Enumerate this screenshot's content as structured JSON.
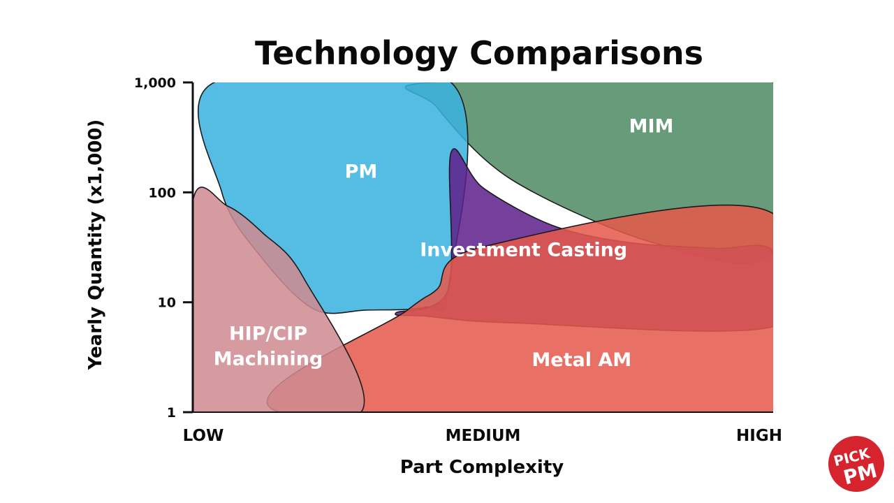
{
  "chart_data": {
    "type": "area",
    "title": "Technology Comparisons",
    "xlabel": "Part Complexity",
    "ylabel": "Yearly Quantity (x1,000)",
    "x_categories": [
      "LOW",
      "MEDIUM",
      "HIGH"
    ],
    "xlim": [
      0,
      1
    ],
    "y_scale": "log",
    "ylim": [
      1,
      1000
    ],
    "y_ticks": [
      {
        "value": 1,
        "label": "1"
      },
      {
        "value": 10,
        "label": "10"
      },
      {
        "value": 100,
        "label": "100"
      },
      {
        "value": 1000,
        "label": "1,000"
      }
    ],
    "grid": false,
    "legend": "none",
    "regions": [
      {
        "label": "MIM",
        "color": "#4f8a63",
        "label_at": [
          0.79,
          400
        ],
        "boundary": [
          [
            0.41,
            1000
          ],
          [
            1.0,
            1000
          ],
          [
            1.0,
            29
          ],
          [
            0.8,
            34
          ],
          [
            0.55,
            130
          ],
          [
            0.42,
            600
          ]
        ]
      },
      {
        "label": "PM",
        "color": "#39b2de",
        "label_at": [
          0.29,
          155
        ],
        "boundary": [
          [
            0.037,
            1000
          ],
          [
            0.445,
            1000
          ],
          [
            0.44,
            13
          ],
          [
            0.4,
            9
          ],
          [
            0.3,
            8.5
          ],
          [
            0.21,
            8.6
          ],
          [
            0.12,
            25
          ],
          [
            0.05,
            100
          ]
        ]
      },
      {
        "label": "Investment Casting",
        "color": "#5e1f8c",
        "label_at": [
          0.57,
          30
        ],
        "boundary": [
          [
            0.445,
            230
          ],
          [
            0.5,
            110
          ],
          [
            0.62,
            50
          ],
          [
            0.75,
            35
          ],
          [
            0.9,
            31
          ],
          [
            1.0,
            29
          ],
          [
            1.0,
            6
          ],
          [
            0.55,
            6.5
          ],
          [
            0.4,
            7.5
          ],
          [
            0.35,
            8
          ],
          [
            0.44,
            13
          ]
        ]
      },
      {
        "label": "Metal AM",
        "color": "#e5584a",
        "label_at": [
          0.67,
          3
        ],
        "boundary": [
          [
            0.15,
            1
          ],
          [
            1.0,
            1
          ],
          [
            0.998,
            65
          ],
          [
            0.5,
            32
          ],
          [
            0.42,
            13
          ],
          [
            0.37,
            8.5
          ]
        ]
      },
      {
        "label": "HIP/CIP Machining",
        "label_lines": [
          "HIP/CIP",
          "Machining"
        ],
        "color": "#ce8a92",
        "label_at": [
          0.13,
          4
        ],
        "boundary": [
          [
            0.0,
            82
          ],
          [
            0.06,
            75
          ],
          [
            0.12,
            43
          ],
          [
            0.19,
            17
          ],
          [
            0.29,
            1
          ],
          [
            0.0,
            1
          ]
        ]
      }
    ]
  },
  "logo": {
    "line1": "PICK",
    "line2": "PM",
    "color": "#d5242d"
  }
}
